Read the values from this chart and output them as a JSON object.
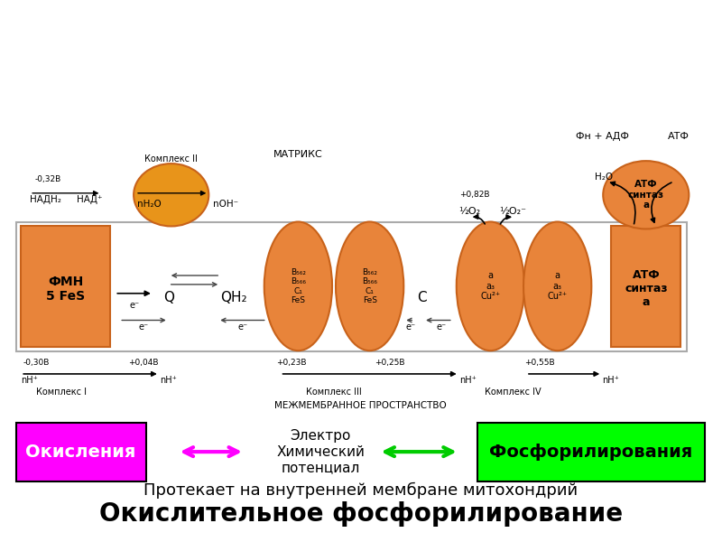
{
  "title": "Окислительное фосфорилирование",
  "subtitle": "Протекает на внутренней мембране митохондрий",
  "box1_text": "Окисления",
  "box1_color": "#FF00FF",
  "box2_text": "Фосфорилирования",
  "box2_color": "#00FF00",
  "middle_text": "Электро\nХимический\nпотенциал",
  "arrow_color_pink": "#FF00FF",
  "arrow_color_green": "#00CC00",
  "orange_color": "#E8843A",
  "orange_dark": "#C8621A",
  "orange_circle": "#E8941A",
  "background_color": "#FFFFFF",
  "label_intermembrane": "МЕЖМЕМБРАННОЕ ПРОСТРАНСТВО",
  "label_matrix": "МАТРИКС",
  "label_complex1": "Комплекс I",
  "label_complex2": "Комплекс II",
  "label_complex3": "Комплекс III",
  "label_complex4": "Комплекс IV"
}
